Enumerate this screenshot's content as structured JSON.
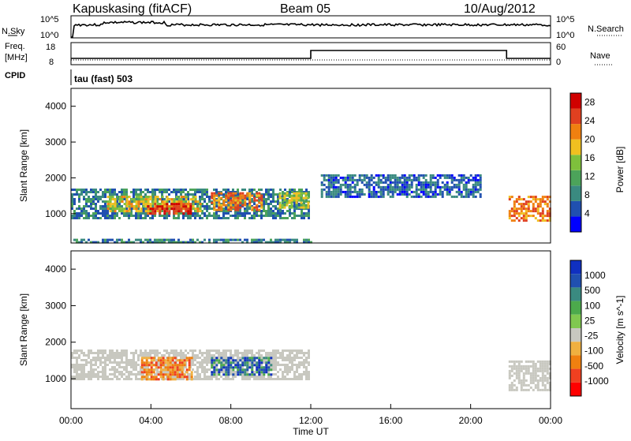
{
  "header": {
    "station": "Kapuskasing (fitACF)",
    "beam": "Beam 05",
    "date": "10/Aug/2012"
  },
  "side_labels": {
    "nsky": "N.Sky",
    "nsearch": "N.Search",
    "freq": "Freq.",
    "freq_unit": "[MHz]",
    "nave": "Nave",
    "cpid": "CPID"
  },
  "top_panel_ticks": {
    "sky_left": [
      "10^5",
      "10^0"
    ],
    "sky_right": [
      "10^5",
      "10^0"
    ],
    "freq_left": [
      "18",
      "8"
    ],
    "freq_right": [
      "60",
      "0"
    ]
  },
  "cpid_text": "tau (fast) 503",
  "colors": {
    "power_scale": [
      "#0000ff",
      "#2050b0",
      "#3a8a80",
      "#4ca35a",
      "#7ec03c",
      "#f0c020",
      "#f08010",
      "#e04020",
      "#d00000"
    ],
    "velocity_scale": [
      "#1030c0",
      "#2050b0",
      "#3a8a80",
      "#4caa4c",
      "#80c850",
      "#c8c8c0",
      "#f0b040",
      "#f08010",
      "#f04020",
      "#ff0000"
    ]
  },
  "chart_data": [
    {
      "type": "heatmap",
      "id": "power",
      "xlabel": "",
      "ylabel": "Slant Range [km]",
      "yticks": [
        "1000",
        "2000",
        "3000",
        "4000"
      ],
      "ylim": [
        180,
        4500
      ],
      "xlim": [
        0,
        24
      ],
      "colorbar": {
        "label": "Power [dB]",
        "ticks": [
          "4",
          "8",
          "12",
          "16",
          "20",
          "24",
          "28"
        ],
        "range": [
          0,
          30
        ]
      },
      "regions": [
        {
          "t0": 0.0,
          "t1": 11.9,
          "r0": 900,
          "r1": 1700,
          "value": 8
        },
        {
          "t0": 1.8,
          "t1": 6.5,
          "r0": 1100,
          "r1": 1500,
          "value": 18
        },
        {
          "t0": 3.8,
          "t1": 6.0,
          "r0": 1000,
          "r1": 1300,
          "value": 26
        },
        {
          "t0": 7.0,
          "t1": 9.5,
          "r0": 1100,
          "r1": 1600,
          "value": 22
        },
        {
          "t0": 10.4,
          "t1": 11.9,
          "r0": 1200,
          "r1": 1600,
          "value": 16
        },
        {
          "t0": 21.9,
          "t1": 24.0,
          "r0": 800,
          "r1": 1500,
          "value": 22
        },
        {
          "t0": 12.5,
          "t1": 20.5,
          "r0": 1500,
          "r1": 2100,
          "value": 6
        },
        {
          "t0": 0.0,
          "t1": 12.0,
          "r0": 200,
          "r1": 300,
          "value": 8
        }
      ]
    },
    {
      "type": "heatmap",
      "id": "velocity",
      "xlabel": "Time UT",
      "ylabel": "Slant Range [km]",
      "yticks": [
        "1000",
        "2000",
        "3000",
        "4000"
      ],
      "xticks": [
        "00:00",
        "04:00",
        "08:00",
        "12:00",
        "16:00",
        "20:00",
        "00:00"
      ],
      "ylim": [
        180,
        4500
      ],
      "xlim": [
        0,
        24
      ],
      "colorbar": {
        "label": "Velocity [m s^-1]",
        "ticks": [
          "1000",
          "500",
          "100",
          "25",
          "-25",
          "-100",
          "-500",
          "-1000"
        ]
      },
      "regions": [
        {
          "t0": 0.0,
          "t1": 11.9,
          "r0": 1000,
          "r1": 1800,
          "value": 0
        },
        {
          "t0": 3.5,
          "t1": 6.0,
          "r0": 1000,
          "r1": 1600,
          "value": -300
        },
        {
          "t0": 7.0,
          "t1": 10.0,
          "r0": 1100,
          "r1": 1600,
          "value": 400
        },
        {
          "t0": 21.9,
          "t1": 24.0,
          "r0": 700,
          "r1": 1500,
          "value": 0
        }
      ]
    }
  ]
}
